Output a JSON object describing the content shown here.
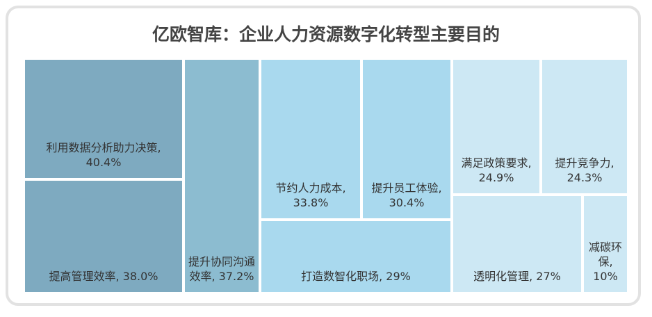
{
  "chart_data": {
    "type": "treemap",
    "title": "亿欧智库：企业人力资源数字化转型主要目的",
    "categories": [
      "利用数据分析助力决策",
      "提高管理效率",
      "提升协同沟通效率",
      "节约人力成本",
      "提升员工体验",
      "打造数智化职场",
      "满足政策要求",
      "提升竞争力",
      "透明化管理",
      "减碳环保"
    ],
    "values": [
      40.4,
      38.0,
      37.2,
      33.8,
      30.4,
      29,
      24.9,
      24.3,
      27,
      10
    ],
    "value_labels": [
      "利用数据分析助力决策, 40.4%",
      "提高管理效率, 38.0%",
      "提升协同沟通效率, 37.2%",
      "节约人力成本, 33.8%",
      "提升员工体验, 30.4%",
      "打造数智化职场, 29%",
      "满足政策要求, 24.9%",
      "提升竞争力, 24.3%",
      "透明化管理, 27%",
      "减碳环保, 10%"
    ],
    "colors": [
      "#7eaac0",
      "#7eaac0",
      "#8cbcd0",
      "#a9d9ee",
      "#a9d9ee",
      "#a9d9ee",
      "#cde8f4",
      "#cde8f4",
      "#cde8f4",
      "#cde8f4"
    ]
  }
}
